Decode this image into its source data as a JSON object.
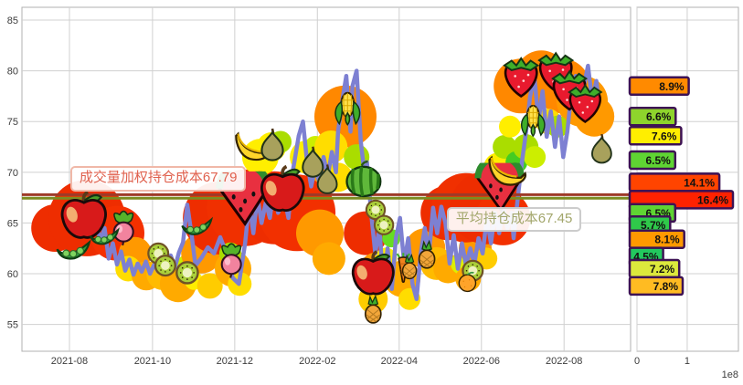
{
  "chart_data": [
    {
      "type": "line",
      "title": "",
      "x_unit": "months-from-plot-left (~2021-07)",
      "xlim": [
        0,
        14.73
      ],
      "ylim": [
        52.36,
        86.26
      ],
      "grid": true,
      "y_ticks": [
        55,
        60,
        65,
        70,
        75,
        80,
        85
      ],
      "x_ticks": [
        {
          "t": 1.15,
          "label": "2021-08"
        },
        {
          "t": 3.16,
          "label": "2021-10"
        },
        {
          "t": 5.15,
          "label": "2021-12"
        },
        {
          "t": 7.15,
          "label": "2022-02"
        },
        {
          "t": 9.13,
          "label": "2022-04"
        },
        {
          "t": 11.12,
          "label": "2022-06"
        },
        {
          "t": 13.12,
          "label": "2022-08"
        }
      ],
      "series": [
        {
          "name": "price",
          "color": "#7d80d2",
          "width": 4.5,
          "points": [
            [
              1.15,
              66.5
            ],
            [
              1.3,
              64.8
            ],
            [
              1.45,
              66.5
            ],
            [
              1.6,
              64.2
            ],
            [
              1.75,
              65.8
            ],
            [
              1.9,
              63.2
            ],
            [
              2.0,
              64.5
            ],
            [
              2.1,
              61.5
            ],
            [
              2.2,
              63.0
            ],
            [
              2.3,
              60.9
            ],
            [
              2.4,
              62.2
            ],
            [
              2.5,
              60.3
            ],
            [
              2.6,
              61.4
            ],
            [
              2.7,
              59.9
            ],
            [
              2.8,
              61.0
            ],
            [
              2.9,
              60.2
            ],
            [
              3.0,
              61.2
            ],
            [
              3.1,
              60.0
            ],
            [
              3.2,
              60.9
            ],
            [
              3.3,
              60.2
            ],
            [
              3.4,
              61.3
            ],
            [
              3.5,
              60.4
            ],
            [
              3.6,
              61.8
            ],
            [
              3.7,
              60.6
            ],
            [
              3.8,
              62.1
            ],
            [
              3.9,
              63.1
            ],
            [
              4.0,
              66.8
            ],
            [
              4.1,
              64.0
            ],
            [
              4.2,
              60.8
            ],
            [
              4.35,
              61.6
            ],
            [
              4.5,
              62.6
            ],
            [
              4.65,
              62.0
            ],
            [
              4.8,
              63.6
            ],
            [
              4.95,
              62.0
            ],
            [
              5.1,
              59.6
            ],
            [
              5.25,
              59.0
            ],
            [
              5.4,
              63.0
            ],
            [
              5.5,
              67.0
            ],
            [
              5.6,
              64.0
            ],
            [
              5.7,
              67.6
            ],
            [
              5.8,
              65.0
            ],
            [
              5.9,
              67.0
            ],
            [
              6.0,
              65.5
            ],
            [
              6.1,
              68.6
            ],
            [
              6.2,
              66.0
            ],
            [
              6.35,
              67.5
            ],
            [
              6.45,
              65.5
            ],
            [
              6.55,
              70.0
            ],
            [
              6.7,
              73.6
            ],
            [
              6.8,
              75.0
            ],
            [
              6.9,
              71.0
            ],
            [
              7.0,
              68.6
            ],
            [
              7.1,
              70.5
            ],
            [
              7.2,
              69.0
            ],
            [
              7.3,
              71.5
            ],
            [
              7.4,
              69.6
            ],
            [
              7.5,
              72.0
            ],
            [
              7.6,
              70.0
            ],
            [
              7.65,
              74.0
            ],
            [
              7.75,
              77.0
            ],
            [
              7.85,
              79.5
            ],
            [
              7.95,
              74.0
            ],
            [
              8.0,
              78.5
            ],
            [
              8.1,
              80.0
            ],
            [
              8.2,
              73.0
            ],
            [
              8.3,
              69.5
            ],
            [
              8.35,
              71.0
            ],
            [
              8.45,
              66.0
            ],
            [
              8.55,
              62.0
            ],
            [
              8.65,
              64.5
            ],
            [
              8.75,
              59.0
            ],
            [
              8.85,
              62.5
            ],
            [
              8.95,
              58.5
            ],
            [
              9.05,
              63.5
            ],
            [
              9.15,
              65.5
            ],
            [
              9.25,
              61.0
            ],
            [
              9.35,
              63.5
            ],
            [
              9.45,
              59.0
            ],
            [
              9.55,
              57.5
            ],
            [
              9.65,
              62.0
            ],
            [
              9.75,
              64.5
            ],
            [
              9.85,
              62.0
            ],
            [
              9.95,
              66.5
            ],
            [
              10.05,
              64.0
            ],
            [
              10.15,
              66.6
            ],
            [
              10.25,
              65.0
            ],
            [
              10.35,
              61.0
            ],
            [
              10.45,
              63.8
            ],
            [
              10.55,
              60.5
            ],
            [
              10.65,
              63.0
            ],
            [
              10.75,
              60.8
            ],
            [
              10.85,
              62.5
            ],
            [
              10.95,
              61.0
            ],
            [
              11.05,
              63.5
            ],
            [
              11.15,
              62.0
            ],
            [
              11.25,
              65.5
            ],
            [
              11.35,
              63.0
            ],
            [
              11.45,
              66.0
            ],
            [
              11.55,
              64.0
            ],
            [
              11.65,
              66.5
            ],
            [
              11.75,
              64.5
            ],
            [
              11.85,
              66.0
            ],
            [
              11.9,
              63.5
            ],
            [
              12.0,
              67.5
            ],
            [
              12.1,
              71.0
            ],
            [
              12.2,
              74.0
            ],
            [
              12.3,
              77.5
            ],
            [
              12.4,
              79.5
            ],
            [
              12.5,
              75.0
            ],
            [
              12.6,
              78.0
            ],
            [
              12.7,
              73.5
            ],
            [
              12.8,
              76.0
            ],
            [
              12.9,
              72.5
            ],
            [
              13.0,
              75.5
            ],
            [
              13.1,
              71.5
            ],
            [
              13.2,
              74.0
            ],
            [
              13.3,
              78.0
            ],
            [
              13.4,
              79.5
            ],
            [
              13.5,
              76.0
            ],
            [
              13.6,
              78.5
            ],
            [
              13.7,
              80.5
            ],
            [
              13.8,
              77.0
            ],
            [
              13.9,
              79.0
            ],
            [
              13.95,
              77.5
            ]
          ]
        }
      ],
      "h_lines": [
        {
          "value": 67.79,
          "color": "#9e3a28",
          "label": "成交量加权持仓成本67.79",
          "label_color": "#e0614e",
          "label_border": "#f0b8a8"
        },
        {
          "value": 67.45,
          "color": "#7b8c21",
          "label": "平均持仓成本67.45",
          "label_color": "#a2a66b",
          "label_border": "#cccccc"
        }
      ]
    },
    {
      "type": "bar",
      "orientation": "horizontal",
      "xlim": [
        0,
        2.02
      ],
      "x_ticks": [
        {
          "v": 0,
          "label": "0"
        },
        {
          "v": 1,
          "label": "1"
        }
      ],
      "x_exp_label": "1e8",
      "bar_border_color": "#3d1254",
      "bars": [
        {
          "price": 78.5,
          "pct": "8.9%",
          "volume_e8": 1.03,
          "color": "#ff8a00"
        },
        {
          "price": 75.5,
          "pct": "6.6%",
          "volume_e8": 0.77,
          "color": "#8ed42c"
        },
        {
          "price": 73.6,
          "pct": "7.6%",
          "volume_e8": 0.88,
          "color": "#ffee00"
        },
        {
          "price": 71.2,
          "pct": "6.5%",
          "volume_e8": 0.76,
          "color": "#5fd433"
        },
        {
          "price": 69.0,
          "pct": "14.1%",
          "volume_e8": 1.64,
          "color": "#ff4400"
        },
        {
          "price": 67.3,
          "pct": "16.4%",
          "volume_e8": 1.91,
          "color": "#ff2200"
        },
        {
          "price": 66.0,
          "pct": "6.5%",
          "volume_e8": 0.76,
          "color": "#5fd433"
        },
        {
          "price": 64.8,
          "pct": "5.7%",
          "volume_e8": 0.66,
          "color": "#2fc94a"
        },
        {
          "price": 63.4,
          "pct": "8.1%",
          "volume_e8": 0.94,
          "color": "#ff9900"
        },
        {
          "price": 61.7,
          "pct": "4.5%",
          "volume_e8": 0.52,
          "color": "#22c95e"
        },
        {
          "price": 60.5,
          "pct": "7.2%",
          "volume_e8": 0.84,
          "color": "#dce83c"
        },
        {
          "price": 58.8,
          "pct": "7.8%",
          "volume_e8": 0.91,
          "color": "#ffbb22"
        }
      ]
    }
  ],
  "decorations": {
    "fruits": [
      [
        "apple",
        1.5,
        65.7,
        58
      ],
      [
        "radish",
        2.46,
        64.6,
        42
      ],
      [
        "pea",
        1.24,
        62.6,
        44
      ],
      [
        "pea",
        1.99,
        63.9,
        38
      ],
      [
        "kiwi",
        3.3,
        62.0,
        30
      ],
      [
        "kiwi",
        3.47,
        60.8,
        30
      ],
      [
        "kiwi",
        4.0,
        60.1,
        32
      ],
      [
        "pea",
        4.23,
        64.9,
        40
      ],
      [
        "radish",
        5.07,
        61.4,
        42
      ],
      [
        "wslice",
        5.33,
        67.3,
        62
      ],
      [
        "apple",
        6.31,
        68.3,
        56
      ],
      [
        "banana",
        5.62,
        72.8,
        44
      ],
      [
        "pear",
        6.06,
        72.7,
        42
      ],
      [
        "pear",
        7.04,
        71.0,
        40
      ],
      [
        "pear",
        7.39,
        69.3,
        38
      ],
      [
        "corn",
        7.88,
        76.4,
        40
      ],
      [
        "wmelon",
        8.27,
        69.3,
        46
      ],
      [
        "kiwi",
        8.56,
        66.3,
        28
      ],
      [
        "kiwi",
        8.76,
        64.8,
        28
      ],
      [
        "apple",
        8.5,
        60.0,
        54
      ],
      [
        "carrot",
        9.23,
        60.6,
        34
      ],
      [
        "pine",
        9.8,
        61.9,
        34
      ],
      [
        "pine",
        9.38,
        60.7,
        30
      ],
      [
        "pine",
        8.5,
        56.5,
        34
      ],
      [
        "kiwi",
        10.91,
        60.3,
        30
      ],
      [
        "orange",
        10.78,
        59.2,
        28
      ],
      [
        "wslice",
        11.53,
        68.4,
        56
      ],
      [
        "banana",
        11.77,
        70.4,
        46
      ],
      [
        "corn",
        12.37,
        75.2,
        38
      ],
      [
        "straw",
        12.08,
        79.6,
        52
      ],
      [
        "straw",
        12.92,
        80.1,
        52
      ],
      [
        "straw",
        13.25,
        78.3,
        52
      ],
      [
        "straw",
        13.63,
        77.0,
        50
      ],
      [
        "pear",
        14.03,
        72.3,
        38
      ]
    ],
    "blobs": [
      [
        0.8,
        64.5,
        26,
        "#ee2d00"
      ],
      [
        1.57,
        65.5,
        42,
        "#ee2d00"
      ],
      [
        2.3,
        64.0,
        30,
        "#f43000"
      ],
      [
        2.74,
        62.0,
        18,
        "#ff9900"
      ],
      [
        2.57,
        60.5,
        14,
        "#ffdd00"
      ],
      [
        3.01,
        59.8,
        16,
        "#ffaa00"
      ],
      [
        3.41,
        60.0,
        18,
        "#ffbb00"
      ],
      [
        3.78,
        59.0,
        20,
        "#ffaa00"
      ],
      [
        4.0,
        60.8,
        12,
        "#ccee00"
      ],
      [
        4.16,
        59.3,
        10,
        "#ffee00"
      ],
      [
        4.34,
        62.0,
        22,
        "#ff9900"
      ],
      [
        4.55,
        58.8,
        14,
        "#ffcc00"
      ],
      [
        4.78,
        65.5,
        40,
        "#ee2d00"
      ],
      [
        5.4,
        66.5,
        42,
        "#f03000"
      ],
      [
        6.11,
        66.5,
        40,
        "#ee2d00"
      ],
      [
        6.66,
        66.0,
        42,
        "#f23000"
      ],
      [
        5.11,
        60.5,
        20,
        "#ffaa00"
      ],
      [
        5.04,
        62.0,
        12,
        "#aadd00"
      ],
      [
        5.27,
        59.0,
        13,
        "#ffdd00"
      ],
      [
        5.77,
        71.5,
        20,
        "#ffee00"
      ],
      [
        6.04,
        72.5,
        16,
        "#ffee00"
      ],
      [
        6.26,
        73.0,
        12,
        "#aadd00"
      ],
      [
        6.88,
        71.5,
        18,
        "#ffee00"
      ],
      [
        7.1,
        72.5,
        12,
        "#ccee00"
      ],
      [
        7.26,
        70.0,
        12,
        "#ff9900"
      ],
      [
        7.83,
        75.5,
        34,
        "#ff8800"
      ],
      [
        7.48,
        72.5,
        18,
        "#ffdd00"
      ],
      [
        8.1,
        71.5,
        14,
        "#aadd00"
      ],
      [
        7.65,
        69.5,
        16,
        "#ffdd00"
      ],
      [
        7.21,
        64.0,
        26,
        "#ff9900"
      ],
      [
        7.43,
        61.5,
        18,
        "#ffaa00"
      ],
      [
        8.32,
        64.0,
        24,
        "#ee2d00"
      ],
      [
        8.58,
        60.5,
        18,
        "#ff9900"
      ],
      [
        8.5,
        57.5,
        16,
        "#ffcc00"
      ],
      [
        8.81,
        61.5,
        12,
        "#ffee00"
      ],
      [
        8.94,
        63.5,
        10,
        "#66dd22"
      ],
      [
        9.2,
        59.5,
        20,
        "#ffaa00"
      ],
      [
        9.38,
        57.5,
        12,
        "#ffdd00"
      ],
      [
        9.76,
        62.5,
        22,
        "#ff9900"
      ],
      [
        10.04,
        61.0,
        18,
        "#ffbb00"
      ],
      [
        10.31,
        60.5,
        16,
        "#ffaa00"
      ],
      [
        10.64,
        61.0,
        12,
        "#ddee00"
      ],
      [
        10.8,
        59.5,
        14,
        "#ffaa00"
      ],
      [
        10.97,
        62.5,
        18,
        "#ff9900"
      ],
      [
        11.24,
        61.5,
        12,
        "#ffcc00"
      ],
      [
        10.31,
        66.0,
        30,
        "#ee2d00"
      ],
      [
        10.75,
        66.5,
        38,
        "#f03000"
      ],
      [
        11.24,
        66.5,
        40,
        "#ee2d00"
      ],
      [
        11.64,
        65.5,
        30,
        "#f23000"
      ],
      [
        11.53,
        70.5,
        16,
        "#ffee00"
      ],
      [
        11.68,
        72.5,
        13,
        "#aadd00"
      ],
      [
        11.81,
        74.5,
        12,
        "#ffee00"
      ],
      [
        11.97,
        71.0,
        12,
        "#44cc22"
      ],
      [
        12.19,
        72.5,
        14,
        "#aadd00"
      ],
      [
        12.41,
        71.5,
        12,
        "#ccee00"
      ],
      [
        12.08,
        78.5,
        30,
        "#ff8800"
      ],
      [
        12.57,
        79.5,
        28,
        "#ff8800"
      ],
      [
        13.08,
        78.5,
        30,
        "#ff8800"
      ],
      [
        13.56,
        77.0,
        28,
        "#ff9900"
      ],
      [
        13.85,
        75.5,
        22,
        "#ff9900"
      ],
      [
        12.74,
        75.0,
        14,
        "#ffdd00"
      ],
      [
        12.96,
        74.5,
        12,
        "#aadd00"
      ]
    ]
  },
  "axes_style": {
    "grid_color": "#d0d0d0",
    "spine_color": "#b0b0b0",
    "tick_color": "#3c3c3c"
  }
}
